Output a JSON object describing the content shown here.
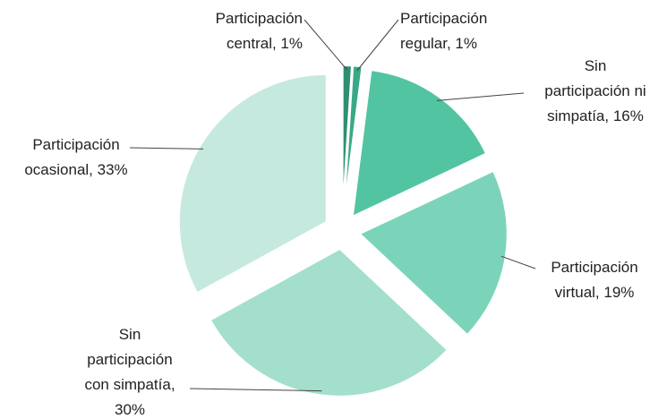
{
  "chart_data": {
    "type": "pie",
    "labels": [
      "Participación central, 1%",
      "Participación regular, 1%",
      "Sin participación ni simpatía, 16%",
      "Participación virtual, 19%",
      "Sin participación con simpatía, 30%",
      "Participación ocasional, 33%"
    ],
    "values": [
      1,
      1,
      16,
      19,
      30,
      33
    ],
    "colors": [
      "#2e8e72",
      "#3aa886",
      "#52c4a1",
      "#7bd4ba",
      "#a3dfcc",
      "#c5e9de"
    ],
    "exploded": true
  }
}
